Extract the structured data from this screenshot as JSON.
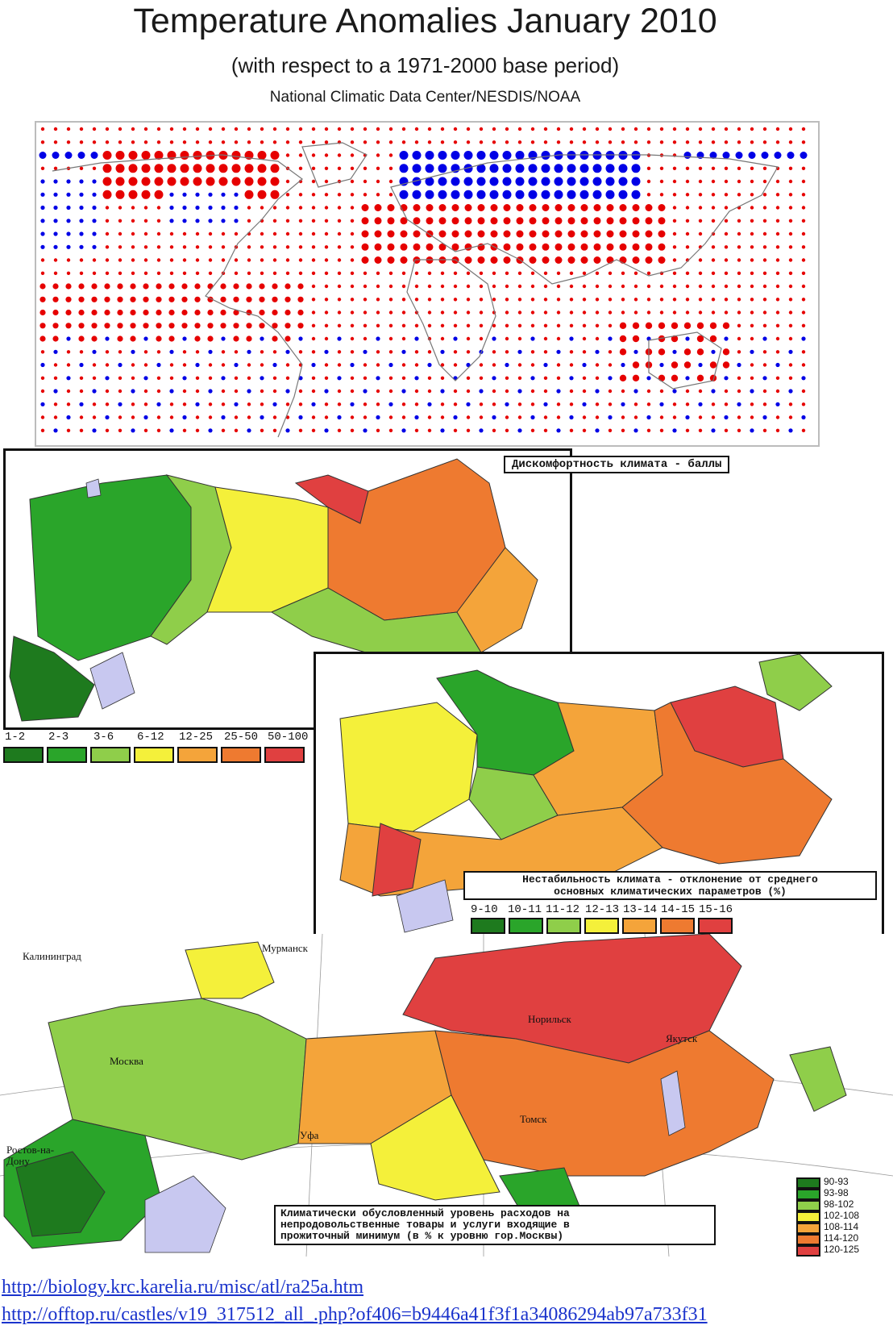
{
  "header": {
    "title": "Temperature Anomalies January 2010",
    "subtitle": "(with respect to a 1971-2000 base period)",
    "source": "National Climatic Data Center/NESDIS/NOAA"
  },
  "colors": {
    "warm": "#e60000",
    "cold": "#0000e6",
    "water": "#c8c8f0"
  },
  "panel1": {
    "caption": "Дискомфортность климата - баллы",
    "legend": [
      {
        "label": "1-2",
        "color": "#1e7a1e"
      },
      {
        "label": "2-3",
        "color": "#2aa52a"
      },
      {
        "label": "3-6",
        "color": "#8fce4a"
      },
      {
        "label": "6-12",
        "color": "#f4f03a"
      },
      {
        "label": "12-25",
        "color": "#f4a43a"
      },
      {
        "label": "25-50",
        "color": "#ee7a30"
      },
      {
        "label": "50-100",
        "color": "#e04040"
      }
    ]
  },
  "panel2": {
    "caption_line1": "Нестабильность климата - отклонение от среднего",
    "caption_line2": "основных климатических параметров (%)",
    "legend": [
      {
        "label": "9-10",
        "color": "#1e7a1e"
      },
      {
        "label": "10-11",
        "color": "#2aa52a"
      },
      {
        "label": "11-12",
        "color": "#8fce4a"
      },
      {
        "label": "12-13",
        "color": "#f4f03a"
      },
      {
        "label": "13-14",
        "color": "#f4a43a"
      },
      {
        "label": "14-15",
        "color": "#ee7a30"
      },
      {
        "label": "15-16",
        "color": "#e04040"
      }
    ]
  },
  "panel3": {
    "caption_line1": "Климатически обусловленный уровень расходов на",
    "caption_line2": "непродовольственные товары и услуги входящие в",
    "caption_line3": "прожиточный минимум (в % к уровню гор.Москвы)",
    "cities": {
      "kaliningrad": "Калининград",
      "murmansk": "Мурманск",
      "norilsk": "Норильск",
      "moskva": "Москва",
      "yakutsk": "Якутск",
      "tomsk": "Томск",
      "ufa": "Уфа",
      "rostov1": "Ростов-на-",
      "rostov2": "Дону"
    },
    "legend": [
      {
        "label": "90-93",
        "color": "#1e7a1e"
      },
      {
        "label": "93-98",
        "color": "#2aa52a"
      },
      {
        "label": "98-102",
        "color": "#8fce4a"
      },
      {
        "label": "102-108",
        "color": "#f4f03a"
      },
      {
        "label": "108-114",
        "color": "#f4a43a"
      },
      {
        "label": "114-120",
        "color": "#ee7a30"
      },
      {
        "label": "120-125",
        "color": "#e04040"
      }
    ]
  },
  "links": {
    "url1": "http://biology.krc.karelia.ru/misc/atl/ra25a.htm",
    "url2": "http://offtop.ru/castles/v19_317512_all_.php?of406=b9446a41f3f1a34086294ab97a733f31"
  }
}
